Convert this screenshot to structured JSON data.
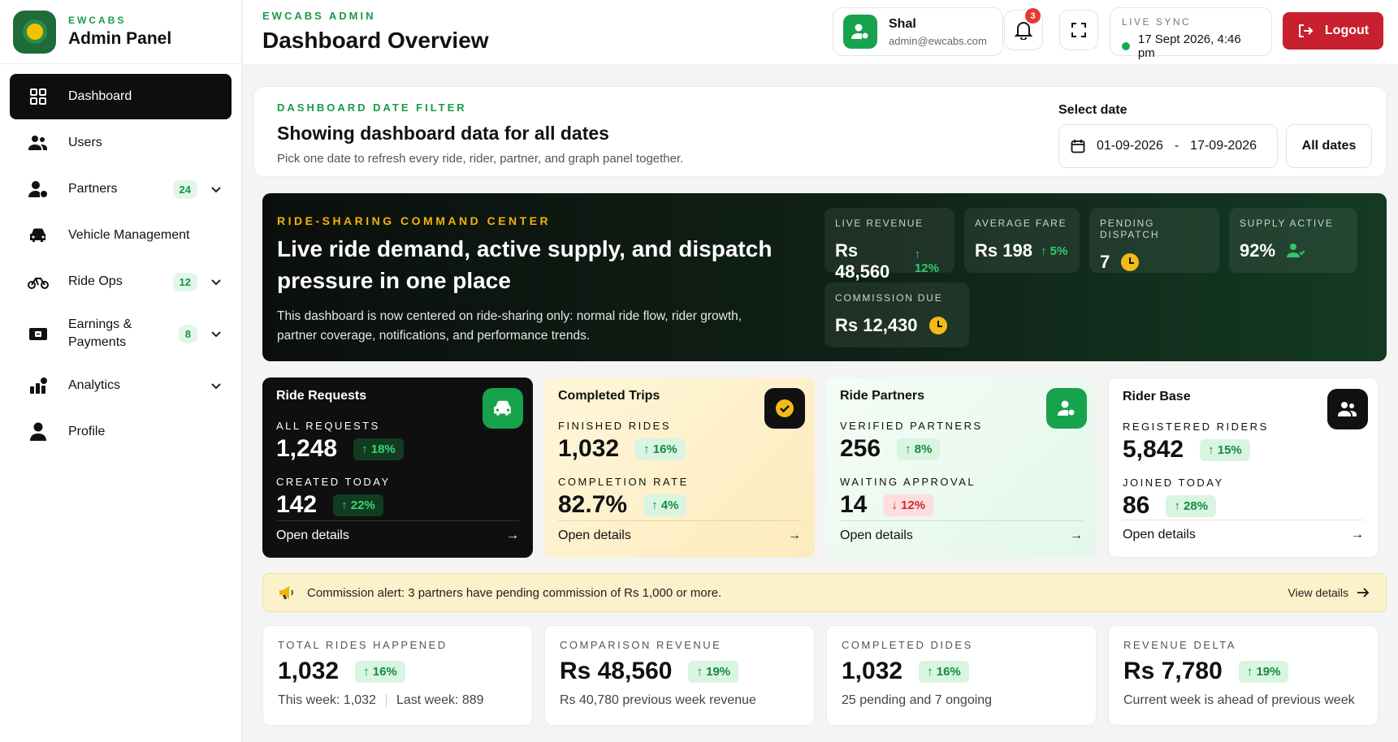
{
  "brand": {
    "kicker": "EWCABS",
    "title": "Admin Panel"
  },
  "sidebar": {
    "items": [
      {
        "label": "Dashboard",
        "icon": "grid-icon"
      },
      {
        "label": "Users",
        "icon": "users-icon"
      },
      {
        "label": "Partners",
        "icon": "partner-icon",
        "badge": "24"
      },
      {
        "label": "Vehicle Management",
        "icon": "car-icon"
      },
      {
        "label": "Ride Ops",
        "icon": "bike-icon",
        "badge": "12"
      },
      {
        "label": "Earnings & Payments",
        "icon": "wallet-icon",
        "badge": "8"
      },
      {
        "label": "Analytics",
        "icon": "analytics-icon"
      },
      {
        "label": "Profile",
        "icon": "profile-icon"
      }
    ]
  },
  "header": {
    "kicker": "EWCABS ADMIN",
    "title": "Dashboard Overview",
    "user": {
      "name": "Shal",
      "email": "admin@ewcabs.com"
    },
    "notifications": "3",
    "sync": {
      "kicker": "LIVE SYNC",
      "value": "17 Sept 2026, 4:46 pm"
    },
    "logout": "Logout"
  },
  "filter": {
    "kicker": "DASHBOARD DATE FILTER",
    "title": "Showing dashboard data for all dates",
    "subtitle": "Pick one date to refresh every ride, rider, partner, and graph panel together.",
    "select_label": "Select date",
    "date_from": "01-09-2026",
    "date_sep": "-",
    "date_to": "17-09-2026",
    "all_dates": "All dates"
  },
  "command": {
    "kicker": "RIDE-SHARING COMMAND CENTER",
    "title": "Live ride demand, active supply, and dispatch pressure in one place",
    "desc": "This dashboard is now centered on ride-sharing only: normal ride flow, rider growth, partner coverage, notifications, and performance trends.",
    "kpis": [
      {
        "label": "LIVE REVENUE",
        "value": "Rs 48,560",
        "trend": "12%"
      },
      {
        "label": "AVERAGE FARE",
        "value": "Rs 198",
        "trend": "5%"
      },
      {
        "label": "PENDING DISPATCH",
        "value": "7"
      },
      {
        "label": "SUPPLY ACTIVE",
        "value": "92%"
      },
      {
        "label": "COMMISSION DUE",
        "value": "Rs 12,430"
      }
    ]
  },
  "cards": [
    {
      "title": "Ride Requests",
      "l1": "ALL REQUESTS",
      "v1": "1,248",
      "t1": "18%",
      "l2": "CREATED TODAY",
      "v2": "142",
      "t2": "22%",
      "open": "Open details"
    },
    {
      "title": "Completed Trips",
      "l1": "FINISHED RIDES",
      "v1": "1,032",
      "t1": "16%",
      "l2": "COMPLETION RATE",
      "v2": "82.7%",
      "t2": "4%",
      "open": "Open details"
    },
    {
      "title": "Ride Partners",
      "l1": "VERIFIED PARTNERS",
      "v1": "256",
      "t1": "8%",
      "l2": "WAITING APPROVAL",
      "v2": "14",
      "t2": "12%",
      "open": "Open details"
    },
    {
      "title": "Rider Base",
      "l1": "REGISTERED RIDERS",
      "v1": "5,842",
      "t1": "15%",
      "l2": "JOINED TODAY",
      "v2": "86",
      "t2": "28%",
      "open": "Open details"
    }
  ],
  "alert": {
    "message": "Commission alert: 3 partners have pending commission of Rs 1,000 or more.",
    "link": "View details"
  },
  "metrics": [
    {
      "label": "TOTAL RIDES HAPPENED",
      "value": "1,032",
      "trend": "16%",
      "sub_a": "This week: 1,032",
      "sub_b": "Last week: 889"
    },
    {
      "label": "COMPARISON REVENUE",
      "value": "Rs 48,560",
      "trend": "19%",
      "sub": "Rs 40,780 previous week revenue"
    },
    {
      "label": "COMPLETED DIDES",
      "value": "1,032",
      "trend": "16%",
      "sub": "25 pending and 7 ongoing"
    },
    {
      "label": "REVENUE DELTA",
      "value": "Rs 7,780",
      "trend": "19%",
      "sub": "Current week is ahead of previous week"
    }
  ],
  "colors": {
    "accent": "#1a9a4a",
    "danger": "#c8202e",
    "warning": "#f2bb17",
    "dark": "#0f0f0f"
  }
}
